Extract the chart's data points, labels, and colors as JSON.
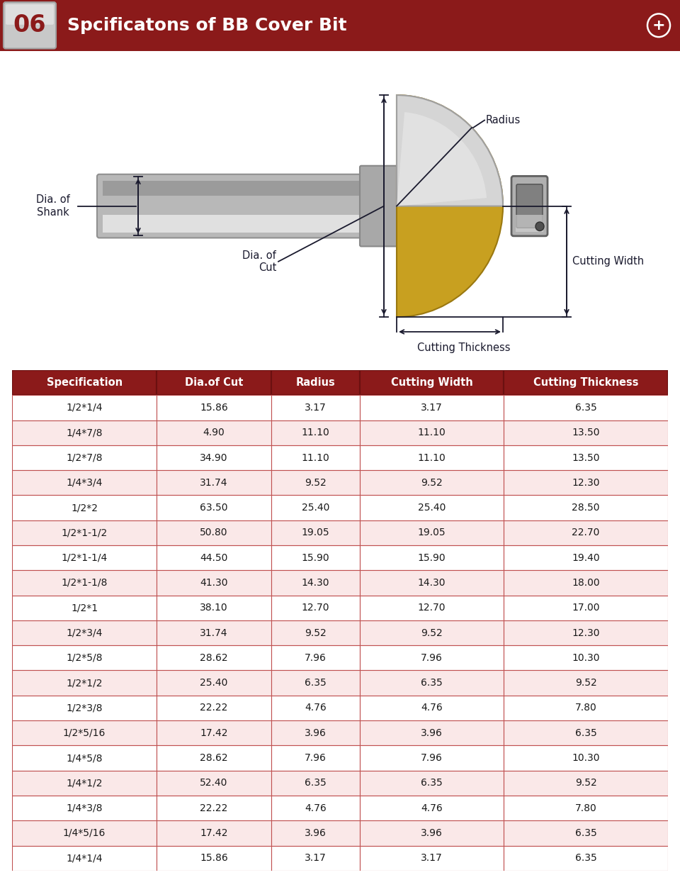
{
  "title": "Spcificatons of BB Cover Bit",
  "title_num": "06",
  "header_bg": "#8B1A1A",
  "header_text_color": "#FFFFFF",
  "table_header_cols": [
    "Specification",
    "Dia.of Cut",
    "Radius",
    "Cutting Width",
    "Cutting Thickness"
  ],
  "table_data": [
    [
      "1/2*1/4",
      "15.86",
      "3.17",
      "3.17",
      "6.35"
    ],
    [
      "1/4*7/8",
      "4.90",
      "11.10",
      "11.10",
      "13.50"
    ],
    [
      "1/2*7/8",
      "34.90",
      "11.10",
      "11.10",
      "13.50"
    ],
    [
      "1/4*3/4",
      "31.74",
      "9.52",
      "9.52",
      "12.30"
    ],
    [
      "1/2*2",
      "63.50",
      "25.40",
      "25.40",
      "28.50"
    ],
    [
      "1/2*1-1/2",
      "50.80",
      "19.05",
      "19.05",
      "22.70"
    ],
    [
      "1/2*1-1/4",
      "44.50",
      "15.90",
      "15.90",
      "19.40"
    ],
    [
      "1/2*1-1/8",
      "41.30",
      "14.30",
      "14.30",
      "18.00"
    ],
    [
      "1/2*1",
      "38.10",
      "12.70",
      "12.70",
      "17.00"
    ],
    [
      "1/2*3/4",
      "31.74",
      "9.52",
      "9.52",
      "12.30"
    ],
    [
      "1/2*5/8",
      "28.62",
      "7.96",
      "7.96",
      "10.30"
    ],
    [
      "1/2*1/2",
      "25.40",
      "6.35",
      "6.35",
      "9.52"
    ],
    [
      "1/2*3/8",
      "22.22",
      "4.76",
      "4.76",
      "7.80"
    ],
    [
      "1/2*5/16",
      "17.42",
      "3.96",
      "3.96",
      "6.35"
    ],
    [
      "1/4*5/8",
      "28.62",
      "7.96",
      "7.96",
      "10.30"
    ],
    [
      "1/4*1/2",
      "52.40",
      "6.35",
      "6.35",
      "9.52"
    ],
    [
      "1/4*3/8",
      "22.22",
      "4.76",
      "4.76",
      "7.80"
    ],
    [
      "1/4*5/16",
      "17.42",
      "3.96",
      "3.96",
      "6.35"
    ],
    [
      "1/4*1/4",
      "15.86",
      "3.17",
      "3.17",
      "6.35"
    ]
  ],
  "row_colors": [
    "#FFFFFF",
    "#FAE8E8"
  ],
  "border_color": "#8B1A1A",
  "text_color_dark": "#1a1a1a",
  "diagram_labels": {
    "cutting_thickness": "Cutting Thickness",
    "radius": "Radius",
    "dia_of_cut": "Dia. of\nCut",
    "dia_of_shank": "Dia. of\nShank",
    "cutting_width": "Cutting Width"
  },
  "label_color": "#1a1a2e",
  "bg_color": "#FFFFFF",
  "shank_color": "#B8B8B8",
  "shank_highlight": "#E8E8E8",
  "shank_dark": "#787878",
  "gold_color": "#C8A020",
  "gold_dark": "#9A7810",
  "silver_color": "#D5D5D5",
  "bearing_color": "#A0A0A0",
  "bearing_dark": "#606060"
}
